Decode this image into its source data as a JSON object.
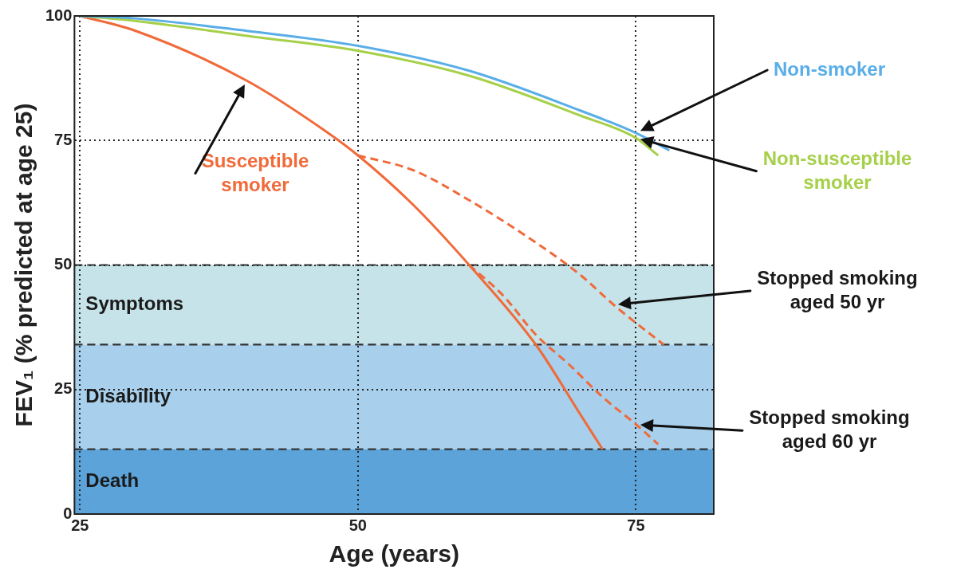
{
  "chart_data": {
    "type": "line",
    "xlabel": "Age (years)",
    "ylabel": "FEV₁ (% predicted at age 25)",
    "xlim": [
      24.5,
      82
    ],
    "xticks": [
      25,
      50,
      75
    ],
    "ylim": [
      0,
      100
    ],
    "yticks": [
      0,
      25,
      50,
      75,
      100
    ],
    "grid": true,
    "legend": false,
    "marker": "none",
    "series": [
      {
        "name": "Non-smoker",
        "color": "#5aaee8",
        "line_style": "solid",
        "x": [
          25,
          30,
          40,
          50,
          60,
          70,
          75,
          78
        ],
        "values": [
          100,
          99.5,
          97,
          94,
          89,
          81,
          76.5,
          73
        ]
      },
      {
        "name": "Non-susceptible smoker",
        "color": "#a6d04a",
        "line_style": "solid",
        "x": [
          25,
          30,
          40,
          50,
          60,
          70,
          75,
          77
        ],
        "values": [
          100,
          99,
          96,
          93,
          88,
          80,
          75.5,
          72
        ]
      },
      {
        "name": "Susceptible smoker",
        "color": "#f06a3a",
        "line_style": "solid",
        "x": [
          25,
          30,
          40,
          47,
          50,
          55,
          60,
          66,
          70,
          72
        ],
        "values": [
          100,
          97,
          87,
          77,
          72,
          62,
          50,
          34,
          20,
          13
        ]
      },
      {
        "name": "Stopped smoking aged 50 yr",
        "color": "#f06a3a",
        "line_style": "dashed",
        "x": [
          50,
          55,
          60,
          65,
          70,
          73,
          77.5
        ],
        "values": [
          72,
          69,
          63,
          56,
          48,
          42,
          34
        ]
      },
      {
        "name": "Stopped smoking aged 60 yr",
        "color": "#f06a3a",
        "line_style": "dashed",
        "x": [
          60,
          63,
          66,
          69,
          72,
          75,
          77
        ],
        "values": [
          50,
          44,
          36,
          30,
          23.5,
          18,
          14
        ]
      }
    ],
    "bands": [
      {
        "axis": "y",
        "from": 34,
        "to": 50,
        "label": "Symptoms",
        "color": "#c5e3e8"
      },
      {
        "axis": "y",
        "from": 13,
        "to": 34,
        "label": "Disability",
        "color": "#a8d0ec"
      },
      {
        "axis": "y",
        "from": 0,
        "to": 13,
        "label": "Death",
        "color": "#5ba3d9"
      }
    ]
  }
}
